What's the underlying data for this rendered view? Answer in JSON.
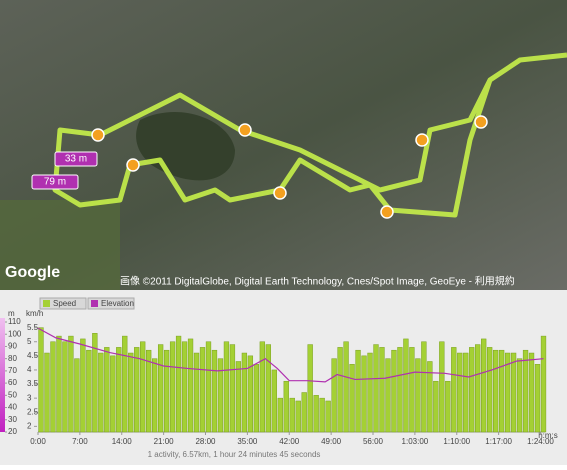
{
  "map": {
    "markers": [
      "33 m",
      "79 m"
    ],
    "logo": "Google",
    "copyright": "画像 ©2011 DigitalGlobe, Digital Earth Technology, Cnes/Spot Image, GeoEye - 利用規約"
  },
  "chart_data": {
    "type": "bar-line",
    "y_label": "m",
    "y2_label": "km/h",
    "x_label": "h:m:s",
    "xlim": [
      0,
      84.75
    ],
    "xticks": [
      {
        "value": 0,
        "label": "0:00"
      },
      {
        "value": 7,
        "label": "7:00"
      },
      {
        "value": 14,
        "label": "14:00"
      },
      {
        "value": 21,
        "label": "21:00"
      },
      {
        "value": 28,
        "label": "28:00"
      },
      {
        "value": 35,
        "label": "35:00"
      },
      {
        "value": 42,
        "label": "42:00"
      },
      {
        "value": 49,
        "label": "49:00"
      },
      {
        "value": 56,
        "label": "56:00"
      },
      {
        "value": 63,
        "label": "1:03:00"
      },
      {
        "value": 70,
        "label": "1:10:00"
      },
      {
        "value": 77,
        "label": "1:17:00"
      },
      {
        "value": 84,
        "label": "1:24:00"
      }
    ],
    "ylim": [
      20,
      110
    ],
    "yticks": [
      20,
      30,
      40,
      50,
      60,
      70,
      80,
      90,
      100,
      110
    ],
    "y2lim": [
      1.8,
      5.7
    ],
    "y2ticks": [
      2,
      2.5,
      3,
      3.5,
      4,
      4.5,
      5,
      5.5
    ],
    "series": [
      {
        "name": "Speed",
        "color": "#a4d034",
        "axis": "y2",
        "x": [
          0.5,
          1.5,
          2.5,
          3.5,
          4.5,
          5.5,
          6.5,
          7.5,
          8.5,
          9.5,
          10.5,
          11.5,
          12.5,
          13.5,
          14.5,
          15.5,
          16.5,
          17.5,
          18.5,
          19.5,
          20.5,
          21.5,
          22.5,
          23.5,
          24.5,
          25.5,
          26.5,
          27.5,
          28.5,
          29.5,
          30.5,
          31.5,
          32.5,
          33.5,
          34.5,
          35.5,
          36.5,
          37.5,
          38.5,
          39.5,
          40.5,
          41.5,
          42.5,
          43.5,
          44.5,
          45.5,
          46.5,
          47.5,
          48.5,
          49.5,
          50.5,
          51.5,
          52.5,
          53.5,
          54.5,
          55.5,
          56.5,
          57.5,
          58.5,
          59.5,
          60.5,
          61.5,
          62.5,
          63.5,
          64.5,
          65.5,
          66.5,
          67.5,
          68.5,
          69.5,
          70.5,
          71.5,
          72.5,
          73.5,
          74.5,
          75.5,
          76.5,
          77.5,
          78.5,
          79.5,
          80.5,
          81.5,
          82.5,
          83.5,
          84.5
        ],
        "values": [
          5.5,
          4.6,
          5.0,
          5.2,
          5.0,
          5.2,
          4.4,
          5.1,
          4.7,
          5.3,
          4.6,
          4.8,
          4.5,
          4.8,
          5.2,
          4.6,
          4.8,
          5.0,
          4.7,
          4.4,
          4.9,
          4.7,
          5.0,
          5.2,
          5.0,
          5.1,
          4.6,
          4.8,
          5.0,
          4.7,
          4.4,
          5.0,
          4.9,
          4.3,
          4.6,
          4.5,
          4.2,
          5.0,
          4.9,
          4.0,
          3.0,
          3.6,
          3.0,
          2.9,
          3.2,
          4.9,
          3.1,
          3.0,
          2.9,
          4.4,
          4.8,
          5.0,
          4.2,
          4.7,
          4.5,
          4.6,
          4.9,
          4.8,
          4.4,
          4.7,
          4.8,
          5.1,
          4.8,
          4.4,
          5.0,
          4.3,
          3.6,
          5.0,
          3.6,
          4.8,
          4.6,
          4.6,
          4.8,
          4.9,
          5.1,
          4.8,
          4.7,
          4.7,
          4.6,
          4.6,
          4.4,
          4.7,
          4.6,
          4.2,
          5.2
        ]
      },
      {
        "name": "Elevation",
        "color": "#b030b0",
        "x": [
          0,
          3,
          7,
          12,
          17,
          21,
          25,
          30,
          35,
          38,
          40,
          42,
          45,
          48,
          50,
          53,
          58,
          63,
          68,
          72,
          76,
          80,
          84.5
        ],
        "values": [
          105,
          97,
          92,
          85,
          80,
          74,
          72,
          70,
          72,
          80,
          72,
          62,
          62,
          61,
          67,
          63,
          64,
          69,
          68,
          65,
          71,
          78,
          80
        ]
      }
    ]
  },
  "footer": "1 activity, 6.57km, 1 hour 24 minutes 45 seconds"
}
